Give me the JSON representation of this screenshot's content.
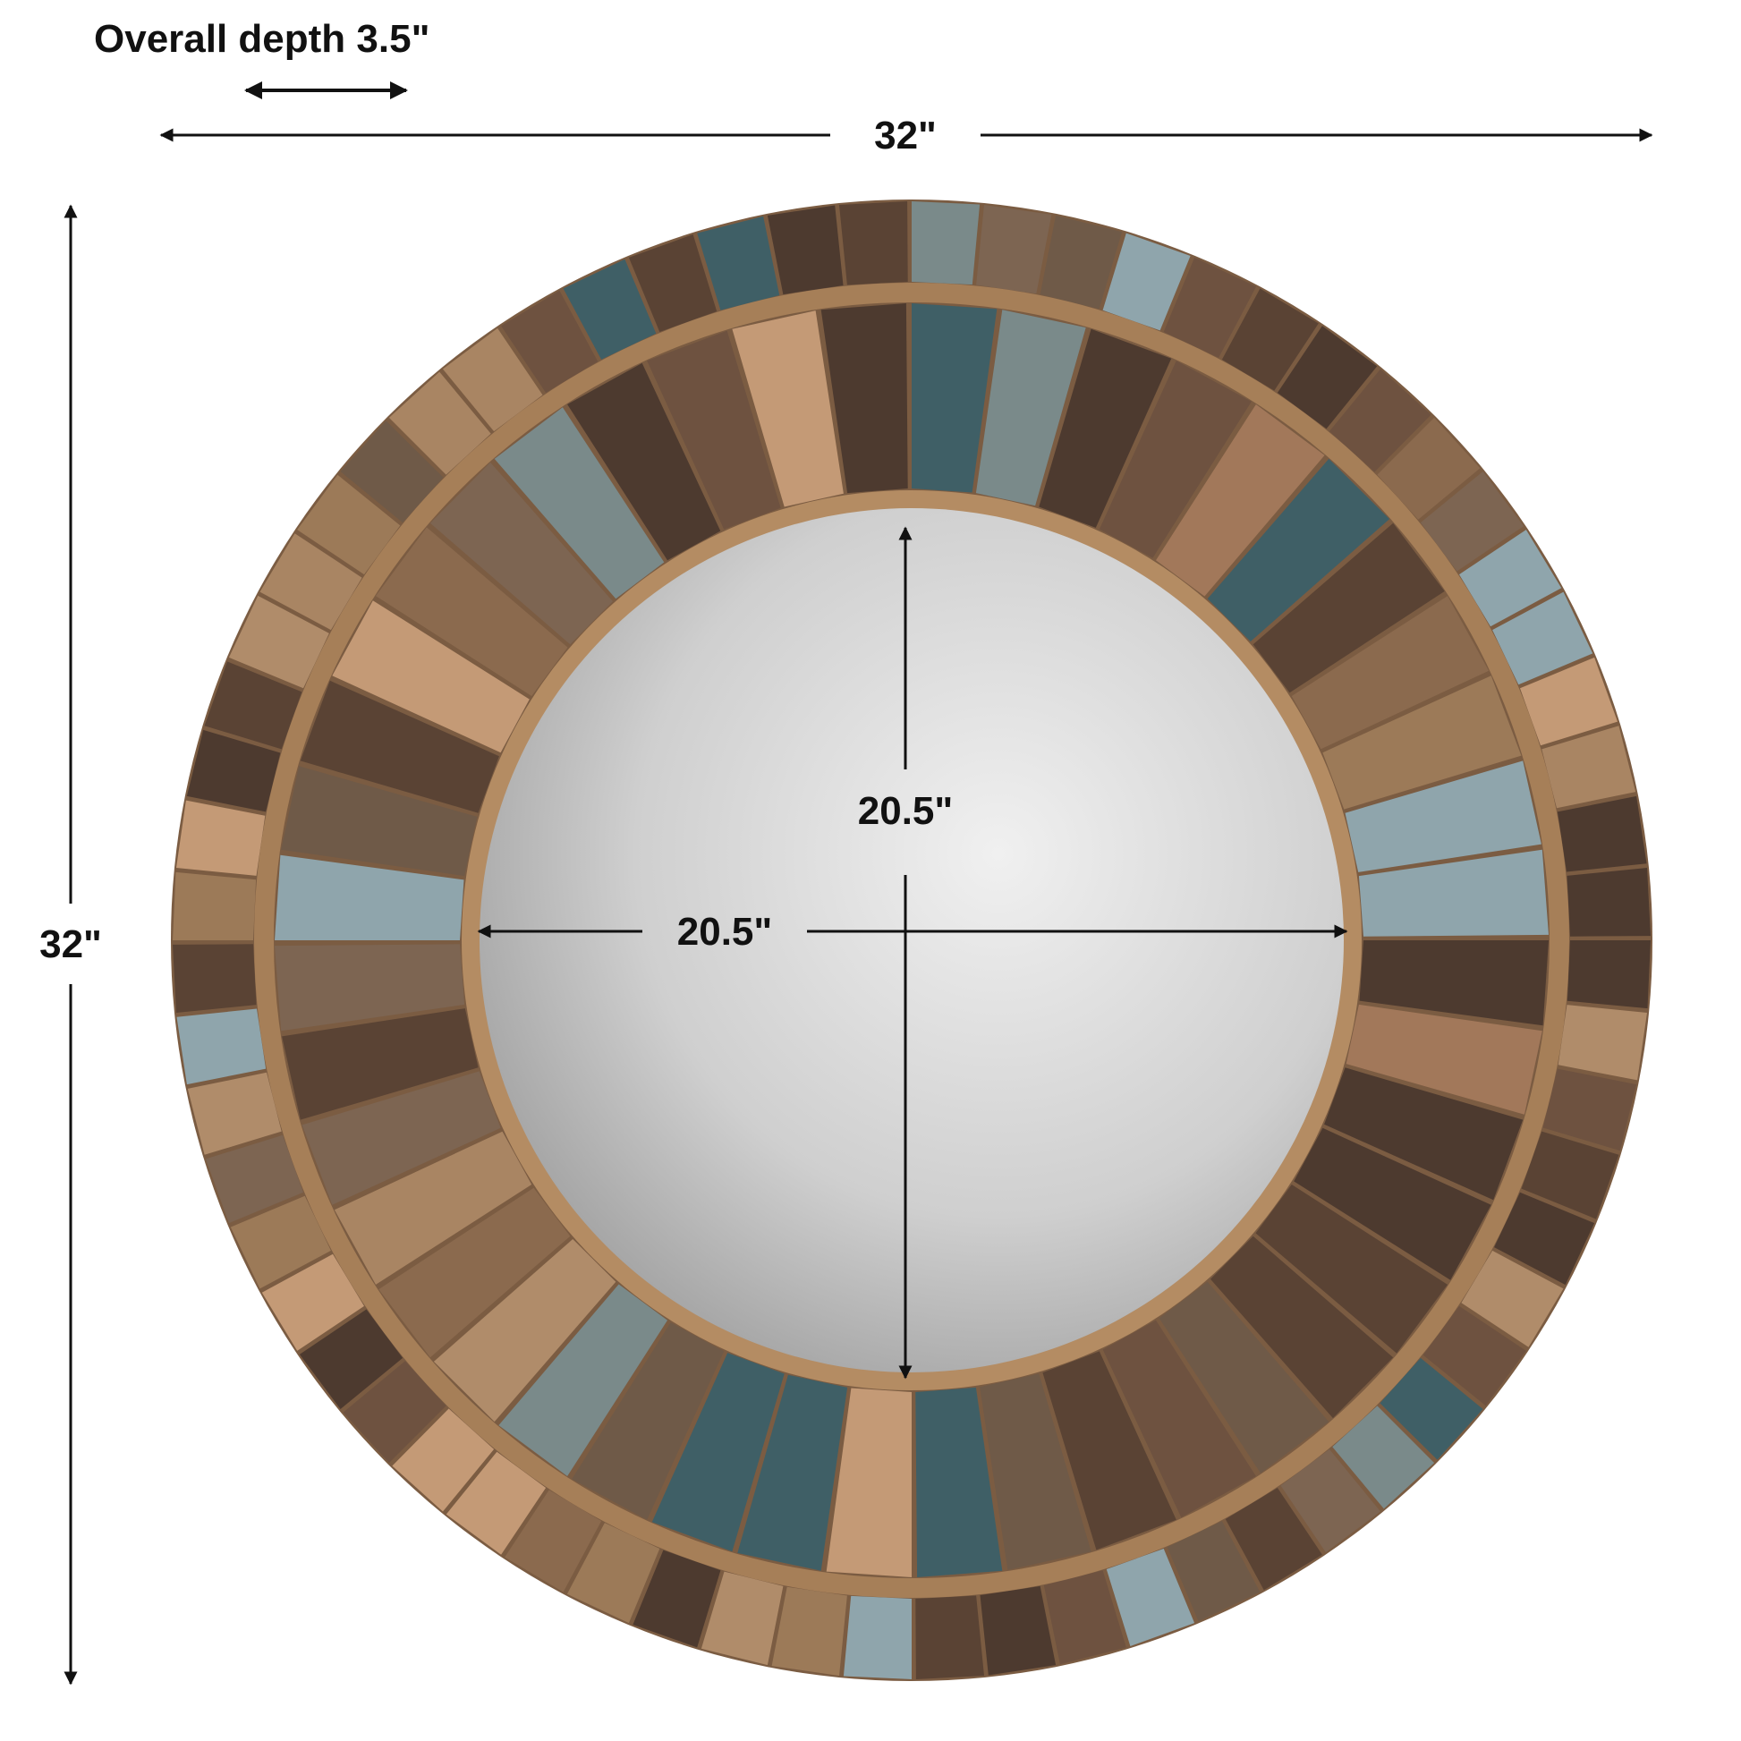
{
  "labels": {
    "overall_depth": "Overall depth 3.5\"",
    "overall_width": "32\"",
    "overall_height": "32\"",
    "mirror_height": "20.5\"",
    "mirror_width": "20.5\""
  },
  "colors": {
    "wood_base": "#8a6a4c",
    "rim": "#b08a62",
    "glass_light": "#eeeeee",
    "glass_dark": "#9a9a9a",
    "arrow": "#111111"
  }
}
